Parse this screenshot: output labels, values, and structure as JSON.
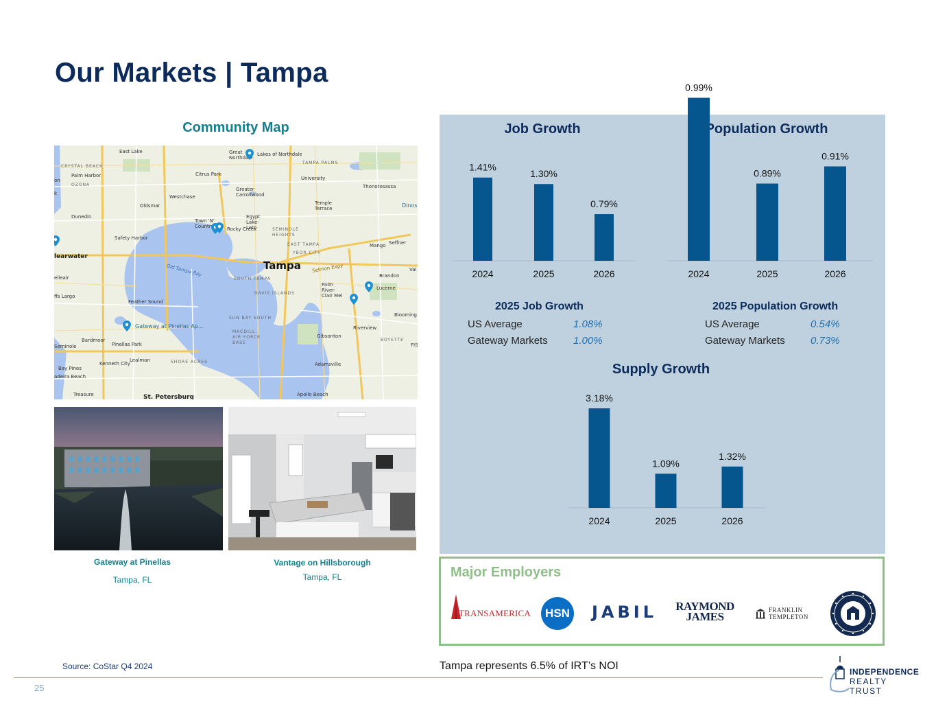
{
  "page": {
    "title": "Our Markets | Tampa",
    "page_number": "25",
    "source": "Source: CoStar Q4 2024",
    "noi_note": "Tampa represents 6.5% of IRT’s NOI"
  },
  "map": {
    "title": "Community Map",
    "labels": {
      "east_lake": "East Lake",
      "crystal_beach": "CRYSTAL BEACH",
      "palm_harbor": "Palm Harbor",
      "ozona": "OZONA",
      "dunedin": "Dunedin",
      "safety_harbor": "Safety Harbor",
      "clearwater": "learwater",
      "belleair": "elleair",
      "largo": "ffs  Largo",
      "seminole": "Seminole",
      "bay_pines": "Bay Pines",
      "madeira_beach": "adeira Beach",
      "treasure": "Treasure",
      "st_petersburg": "St. Petersburg",
      "oldsmar": "Oldsmar",
      "westchase": "Westchase",
      "citrus_park": "Citrus Park",
      "greater_northdale": "Great Northdale",
      "lakes_of_northdale": "Lakes of Northdale",
      "tampa_palms": "TAMPA PALMS",
      "university": "University",
      "thonotosassa": "Thonotosassa",
      "greater_carrollwood": "Greater Carrollwood",
      "temple_terrace": "Temple Terrace",
      "egypt_lake_leto": "Egypt Lake-Leto",
      "town_n_country": "Town 'N' Country",
      "rocky_creek": "Rocky Creek",
      "seminole_heights": "SEMINOLE HEIGHTS",
      "east_tampa": "EAST TAMPA",
      "ybor_city": "YBOR CITY",
      "mango": "Mango",
      "seffner": "Seffner",
      "tampa": "Tampa",
      "south_tampa": "SOUTH TAMPA",
      "davis_islands": "DAVIS ISLANDS",
      "palm_river": "Palm River-Clair Mel",
      "brandon": "Brandon",
      "lucerne": "Lucerne",
      "old_tampa_bay": "Old Tampa Bay",
      "feather_sound": "Feather Sound",
      "sun_bay_south": "SUN BAY SOUTH",
      "macdill": "MACDILL AIR FORCE BASE",
      "gibsonton": "Gibsonton",
      "riverview": "Riverview",
      "bloomingdale": "Blooming",
      "boyette": "BOYETTE",
      "gateway_pinellas": "Gateway at Pinellas Ap...",
      "pinellas_park": "Pinellas Park",
      "bardmoor": "Bardmoor",
      "kenneth_city": "Kenneth City",
      "lealman": "Lealman",
      "shore_acres": "SHORE ACRES",
      "adamsville": "Adamsville",
      "apollo_beach": "Apollo Beach",
      "dinosaur": "Dinos",
      "selmon_expy": "Selmon Expy",
      "val": "Val",
      "fis": "FIS",
      "on": "on",
      "k": "k"
    }
  },
  "photos": [
    {
      "name": "Gateway at Pinellas",
      "location": "Tampa, FL"
    },
    {
      "name": "Vantage on Hillsborough",
      "location": "Tampa, FL"
    }
  ],
  "chart_data": [
    {
      "type": "bar",
      "title": "Job Growth",
      "categories": [
        "2024",
        "2025",
        "2026"
      ],
      "values": [
        1.41,
        1.3,
        0.79
      ],
      "labels": [
        "1.41%",
        "1.30%",
        "0.79%"
      ],
      "ylim": [
        0,
        1.5
      ],
      "color": "#05558e"
    },
    {
      "type": "bar",
      "title": "Population Growth",
      "categories": [
        "2024",
        "2025",
        "2026"
      ],
      "values": [
        0.99,
        0.89,
        0.91
      ],
      "labels": [
        "0.99%",
        "0.89%",
        "0.91%"
      ],
      "ylim": [
        0.8,
        1.0
      ],
      "color": "#05558e"
    },
    {
      "type": "bar",
      "title": "Supply Growth",
      "categories": [
        "2024",
        "2025",
        "2026"
      ],
      "values": [
        3.18,
        1.09,
        1.32
      ],
      "labels": [
        "3.18%",
        "1.09%",
        "1.32%"
      ],
      "ylim": [
        0,
        3.4
      ],
      "color": "#05558e"
    }
  ],
  "comparisons": {
    "job": {
      "title": "2025 Job Growth",
      "rows": [
        {
          "label": "US Average",
          "value": "1.08%"
        },
        {
          "label": "Gateway Markets",
          "value": "1.00%"
        }
      ]
    },
    "population": {
      "title": "2025 Population Growth",
      "rows": [
        {
          "label": "US Average",
          "value": "0.54%"
        },
        {
          "label": "Gateway Markets",
          "value": "0.73%"
        }
      ]
    }
  },
  "employers": {
    "title": "Major Employers",
    "logos": {
      "transamerica": "TRANSAMERICA",
      "hsn": "HSN",
      "jabil": "JABIL",
      "raymond_james_1": "RAYMOND",
      "raymond_james_2": "JAMES",
      "franklin_1": "FRANKLIN",
      "franklin_2": "TEMPLETON",
      "college_icon": "seal-icon"
    }
  },
  "brand": {
    "line1": "INDEPENDENCE",
    "line2": "REALTY TRUST"
  },
  "colors": {
    "title": "#0c2b5a",
    "teal": "#14808f",
    "bar": "#05558e",
    "panel": "#bfd1df",
    "employer_border": "#8fbf88"
  }
}
